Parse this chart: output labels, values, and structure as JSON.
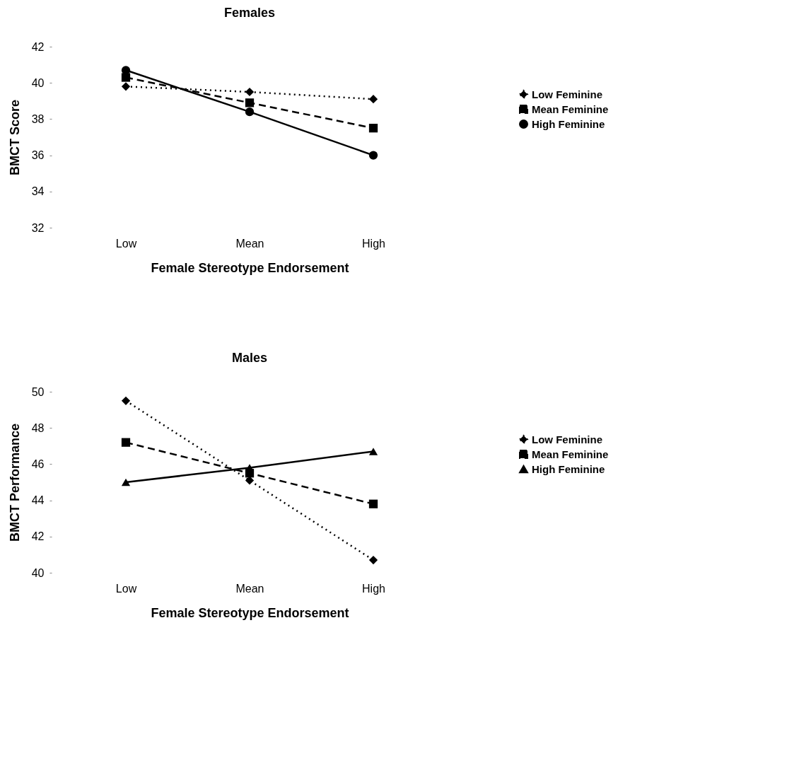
{
  "chart_data": [
    {
      "type": "line",
      "title": "Females",
      "xlabel": "Female Stereotype Endorsement",
      "ylabel": "BMCT Score",
      "categories": [
        "Low",
        "Mean",
        "High"
      ],
      "ylim": [
        32,
        42
      ],
      "yticks": [
        32,
        34,
        36,
        38,
        40,
        42
      ],
      "legend": "right",
      "series": [
        {
          "name": "Low Feminine",
          "color": "#000000",
          "marker": "diamond",
          "line_style": "dotted",
          "values": [
            39.8,
            39.5,
            39.1
          ]
        },
        {
          "name": "Mean Feminine",
          "color": "#000000",
          "marker": "square",
          "line_style": "dashed",
          "values": [
            40.3,
            38.9,
            37.5
          ]
        },
        {
          "name": "High Feminine",
          "color": "#000000",
          "marker": "circle",
          "line_style": "solid",
          "values": [
            40.7,
            38.4,
            36.0
          ]
        }
      ]
    },
    {
      "type": "line",
      "title": "Males",
      "xlabel": "Female Stereotype Endorsement",
      "ylabel": "BMCT Performance",
      "categories": [
        "Low",
        "Mean",
        "High"
      ],
      "ylim": [
        40,
        50
      ],
      "yticks": [
        40,
        42,
        44,
        46,
        48,
        50
      ],
      "legend": "right",
      "series": [
        {
          "name": "Low Feminine",
          "color": "#000000",
          "marker": "diamond",
          "line_style": "dotted",
          "values": [
            49.5,
            45.1,
            40.7
          ]
        },
        {
          "name": "Mean Feminine",
          "color": "#000000",
          "marker": "square",
          "line_style": "dashed",
          "values": [
            47.2,
            45.5,
            43.8
          ]
        },
        {
          "name": "High Feminine",
          "color": "#000000",
          "marker": "triangle",
          "line_style": "solid",
          "values": [
            45.0,
            45.8,
            46.7
          ]
        }
      ]
    }
  ]
}
